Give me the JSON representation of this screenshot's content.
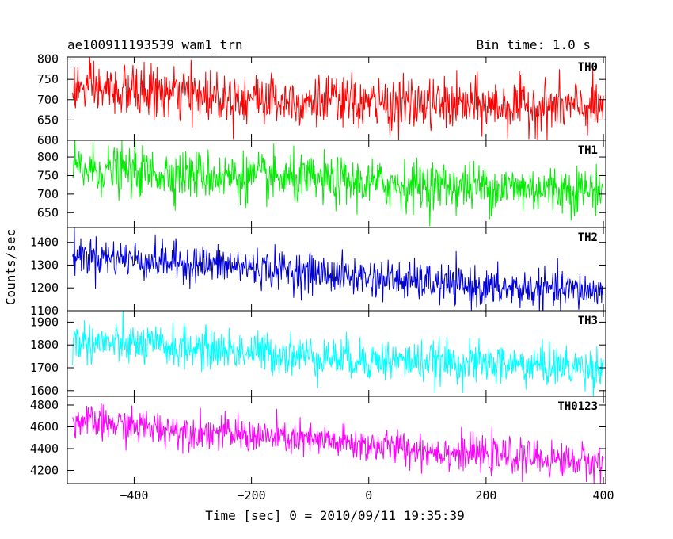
{
  "header": {
    "left_title": "ae100911193539_wam1_trn",
    "right_title": "Bin time: 1.0 s"
  },
  "axes": {
    "xlabel": "Time [sec] 0 = 2010/09/11 19:35:39",
    "ylabel": "Counts/sec"
  },
  "chart_data": {
    "type": "line",
    "x_range": [
      -514,
      404
    ],
    "x_ticks": [
      -400,
      -200,
      0,
      200,
      400
    ],
    "x_tick_labels": [
      "−400",
      "−200",
      "0",
      "200",
      "400"
    ],
    "grid": false,
    "bin_time_s": 1.0,
    "panels": [
      {
        "name": "TH0",
        "color": "#ff0000",
        "ylim": [
          600,
          805
        ],
        "yticks": [
          600,
          650,
          700,
          750,
          800
        ],
        "trend": [
          [
            -505,
            728
          ],
          [
            -200,
            705
          ],
          [
            0,
            690
          ],
          [
            400,
            680
          ]
        ],
        "noise": 32
      },
      {
        "name": "TH1",
        "color": "#00ee00",
        "ylim": [
          610,
          845
        ],
        "yticks": [
          650,
          700,
          750,
          800
        ],
        "trend": [
          [
            -505,
            768
          ],
          [
            -200,
            745
          ],
          [
            0,
            728
          ],
          [
            400,
            710
          ]
        ],
        "noise": 33
      },
      {
        "name": "TH2",
        "color": "#0000dd",
        "ylim": [
          1100,
          1465
        ],
        "yticks": [
          1100,
          1200,
          1300,
          1400
        ],
        "trend": [
          [
            -505,
            1345
          ],
          [
            -200,
            1290
          ],
          [
            0,
            1245
          ],
          [
            200,
            1200
          ],
          [
            400,
            1185
          ]
        ],
        "noise": 42
      },
      {
        "name": "TH3",
        "color": "#00ffff",
        "ylim": [
          1575,
          1950
        ],
        "yticks": [
          1600,
          1700,
          1800,
          1900
        ],
        "trend": [
          [
            -505,
            1815
          ],
          [
            -200,
            1770
          ],
          [
            0,
            1735
          ],
          [
            400,
            1700
          ]
        ],
        "noise": 45
      },
      {
        "name": "TH0123",
        "color": "#ff00ff",
        "ylim": [
          4080,
          4880
        ],
        "yticks": [
          4200,
          4400,
          4600,
          4800
        ],
        "trend": [
          [
            -505,
            4650
          ],
          [
            -200,
            4520
          ],
          [
            0,
            4430
          ],
          [
            200,
            4340
          ],
          [
            400,
            4270
          ]
        ],
        "noise": 80
      }
    ]
  }
}
